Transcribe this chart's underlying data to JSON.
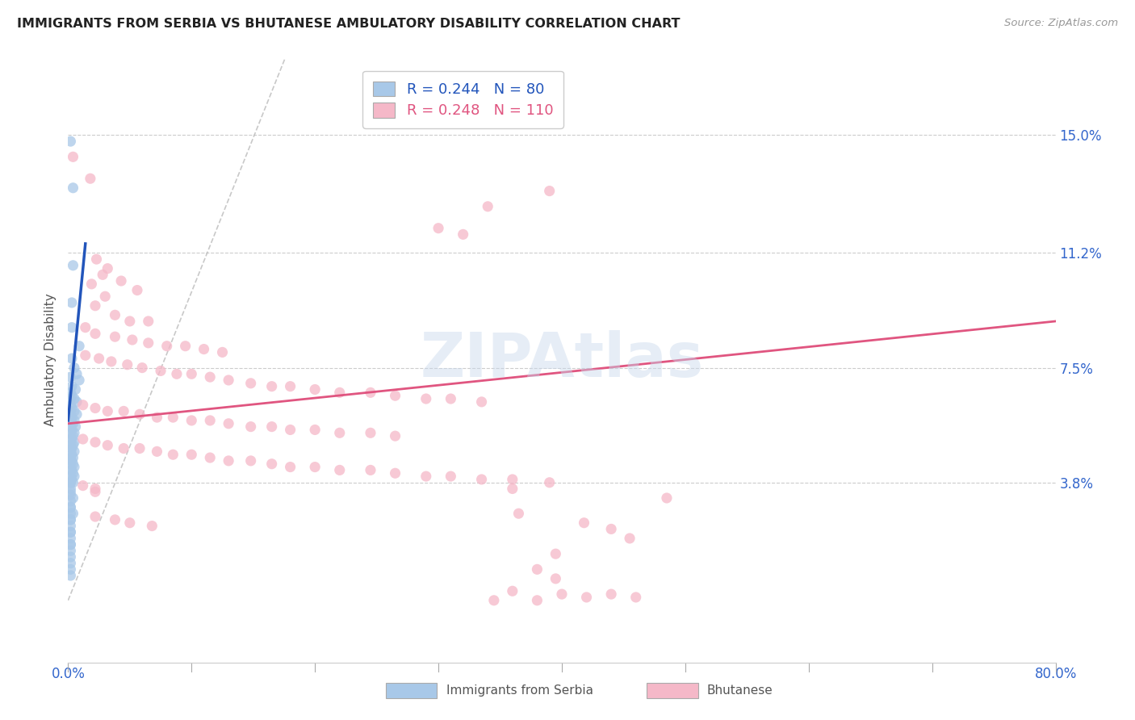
{
  "title": "IMMIGRANTS FROM SERBIA VS BHUTANESE AMBULATORY DISABILITY CORRELATION CHART",
  "source": "Source: ZipAtlas.com",
  "ylabel": "Ambulatory Disability",
  "ytick_labels": [
    "15.0%",
    "11.2%",
    "7.5%",
    "3.8%"
  ],
  "ytick_values": [
    0.15,
    0.112,
    0.075,
    0.038
  ],
  "xlim": [
    0.0,
    0.8
  ],
  "ylim": [
    -0.02,
    0.175
  ],
  "serbia_color": "#a8c8e8",
  "bhutan_color": "#f5b8c8",
  "serbia_R": 0.244,
  "serbia_N": 80,
  "bhutan_R": 0.248,
  "bhutan_N": 110,
  "serbia_line_color": "#2255bb",
  "bhutan_line_color": "#e05580",
  "diagonal_color": "#bbbbbb",
  "legend_label_serbia": "Immigrants from Serbia",
  "legend_label_bhutan": "Bhutanese",
  "watermark": "ZIPAtlas",
  "serbia_line": [
    0.0,
    0.058,
    0.014,
    0.115
  ],
  "bhutan_line": [
    0.0,
    0.057,
    0.8,
    0.09
  ],
  "serbia_points": [
    [
      0.002,
      0.148
    ],
    [
      0.004,
      0.133
    ],
    [
      0.004,
      0.108
    ],
    [
      0.003,
      0.096
    ],
    [
      0.003,
      0.088
    ],
    [
      0.009,
      0.082
    ],
    [
      0.003,
      0.078
    ],
    [
      0.005,
      0.075
    ],
    [
      0.007,
      0.073
    ],
    [
      0.009,
      0.071
    ],
    [
      0.003,
      0.069
    ],
    [
      0.006,
      0.068
    ],
    [
      0.003,
      0.066
    ],
    [
      0.005,
      0.065
    ],
    [
      0.007,
      0.064
    ],
    [
      0.003,
      0.062
    ],
    [
      0.005,
      0.061
    ],
    [
      0.007,
      0.06
    ],
    [
      0.003,
      0.059
    ],
    [
      0.005,
      0.058
    ],
    [
      0.004,
      0.057
    ],
    [
      0.006,
      0.056
    ],
    [
      0.003,
      0.055
    ],
    [
      0.005,
      0.054
    ],
    [
      0.004,
      0.053
    ],
    [
      0.003,
      0.052
    ],
    [
      0.005,
      0.051
    ],
    [
      0.004,
      0.05
    ],
    [
      0.003,
      0.049
    ],
    [
      0.005,
      0.048
    ],
    [
      0.003,
      0.047
    ],
    [
      0.004,
      0.046
    ],
    [
      0.003,
      0.045
    ],
    [
      0.004,
      0.044
    ],
    [
      0.005,
      0.043
    ],
    [
      0.003,
      0.042
    ],
    [
      0.004,
      0.041
    ],
    [
      0.005,
      0.04
    ],
    [
      0.003,
      0.039
    ],
    [
      0.004,
      0.038
    ],
    [
      0.002,
      0.072
    ],
    [
      0.002,
      0.067
    ],
    [
      0.002,
      0.065
    ],
    [
      0.002,
      0.063
    ],
    [
      0.002,
      0.061
    ],
    [
      0.002,
      0.058
    ],
    [
      0.002,
      0.056
    ],
    [
      0.002,
      0.054
    ],
    [
      0.002,
      0.052
    ],
    [
      0.002,
      0.05
    ],
    [
      0.002,
      0.048
    ],
    [
      0.002,
      0.046
    ],
    [
      0.002,
      0.044
    ],
    [
      0.002,
      0.042
    ],
    [
      0.002,
      0.04
    ],
    [
      0.002,
      0.038
    ],
    [
      0.002,
      0.036
    ],
    [
      0.002,
      0.034
    ],
    [
      0.002,
      0.032
    ],
    [
      0.002,
      0.03
    ],
    [
      0.002,
      0.028
    ],
    [
      0.002,
      0.026
    ],
    [
      0.002,
      0.024
    ],
    [
      0.002,
      0.022
    ],
    [
      0.002,
      0.02
    ],
    [
      0.002,
      0.018
    ],
    [
      0.002,
      0.016
    ],
    [
      0.002,
      0.014
    ],
    [
      0.002,
      0.012
    ],
    [
      0.002,
      0.01
    ],
    [
      0.002,
      0.008
    ],
    [
      0.002,
      0.038
    ],
    [
      0.002,
      0.035
    ],
    [
      0.004,
      0.033
    ],
    [
      0.002,
      0.03
    ],
    [
      0.004,
      0.028
    ],
    [
      0.002,
      0.026
    ],
    [
      0.002,
      0.022
    ],
    [
      0.002,
      0.018
    ]
  ],
  "bhutan_points": [
    [
      0.004,
      0.143
    ],
    [
      0.018,
      0.136
    ],
    [
      0.39,
      0.132
    ],
    [
      0.34,
      0.127
    ],
    [
      0.3,
      0.12
    ],
    [
      0.32,
      0.118
    ],
    [
      0.023,
      0.11
    ],
    [
      0.032,
      0.107
    ],
    [
      0.028,
      0.105
    ],
    [
      0.043,
      0.103
    ],
    [
      0.019,
      0.102
    ],
    [
      0.056,
      0.1
    ],
    [
      0.03,
      0.098
    ],
    [
      0.022,
      0.095
    ],
    [
      0.038,
      0.092
    ],
    [
      0.05,
      0.09
    ],
    [
      0.065,
      0.09
    ],
    [
      0.014,
      0.088
    ],
    [
      0.022,
      0.086
    ],
    [
      0.038,
      0.085
    ],
    [
      0.052,
      0.084
    ],
    [
      0.065,
      0.083
    ],
    [
      0.08,
      0.082
    ],
    [
      0.095,
      0.082
    ],
    [
      0.11,
      0.081
    ],
    [
      0.125,
      0.08
    ],
    [
      0.014,
      0.079
    ],
    [
      0.025,
      0.078
    ],
    [
      0.035,
      0.077
    ],
    [
      0.048,
      0.076
    ],
    [
      0.06,
      0.075
    ],
    [
      0.075,
      0.074
    ],
    [
      0.088,
      0.073
    ],
    [
      0.1,
      0.073
    ],
    [
      0.115,
      0.072
    ],
    [
      0.13,
      0.071
    ],
    [
      0.148,
      0.07
    ],
    [
      0.165,
      0.069
    ],
    [
      0.18,
      0.069
    ],
    [
      0.2,
      0.068
    ],
    [
      0.22,
      0.067
    ],
    [
      0.245,
      0.067
    ],
    [
      0.265,
      0.066
    ],
    [
      0.29,
      0.065
    ],
    [
      0.31,
      0.065
    ],
    [
      0.335,
      0.064
    ],
    [
      0.012,
      0.063
    ],
    [
      0.022,
      0.062
    ],
    [
      0.032,
      0.061
    ],
    [
      0.045,
      0.061
    ],
    [
      0.058,
      0.06
    ],
    [
      0.072,
      0.059
    ],
    [
      0.085,
      0.059
    ],
    [
      0.1,
      0.058
    ],
    [
      0.115,
      0.058
    ],
    [
      0.13,
      0.057
    ],
    [
      0.148,
      0.056
    ],
    [
      0.165,
      0.056
    ],
    [
      0.18,
      0.055
    ],
    [
      0.2,
      0.055
    ],
    [
      0.22,
      0.054
    ],
    [
      0.245,
      0.054
    ],
    [
      0.265,
      0.053
    ],
    [
      0.012,
      0.052
    ],
    [
      0.022,
      0.051
    ],
    [
      0.032,
      0.05
    ],
    [
      0.045,
      0.049
    ],
    [
      0.058,
      0.049
    ],
    [
      0.072,
      0.048
    ],
    [
      0.085,
      0.047
    ],
    [
      0.1,
      0.047
    ],
    [
      0.115,
      0.046
    ],
    [
      0.13,
      0.045
    ],
    [
      0.148,
      0.045
    ],
    [
      0.165,
      0.044
    ],
    [
      0.18,
      0.043
    ],
    [
      0.2,
      0.043
    ],
    [
      0.22,
      0.042
    ],
    [
      0.245,
      0.042
    ],
    [
      0.265,
      0.041
    ],
    [
      0.29,
      0.04
    ],
    [
      0.31,
      0.04
    ],
    [
      0.335,
      0.039
    ],
    [
      0.36,
      0.039
    ],
    [
      0.39,
      0.038
    ],
    [
      0.012,
      0.037
    ],
    [
      0.022,
      0.036
    ],
    [
      0.36,
      0.036
    ],
    [
      0.022,
      0.035
    ],
    [
      0.485,
      0.033
    ],
    [
      0.365,
      0.028
    ],
    [
      0.022,
      0.027
    ],
    [
      0.038,
      0.026
    ],
    [
      0.05,
      0.025
    ],
    [
      0.068,
      0.024
    ],
    [
      0.418,
      0.025
    ],
    [
      0.44,
      0.023
    ],
    [
      0.455,
      0.02
    ],
    [
      0.395,
      0.015
    ],
    [
      0.38,
      0.01
    ],
    [
      0.395,
      0.007
    ],
    [
      0.36,
      0.003
    ],
    [
      0.4,
      0.002
    ],
    [
      0.42,
      0.001
    ],
    [
      0.38,
      0.0
    ],
    [
      0.345,
      0.0
    ],
    [
      0.44,
      0.002
    ],
    [
      0.46,
      0.001
    ]
  ]
}
